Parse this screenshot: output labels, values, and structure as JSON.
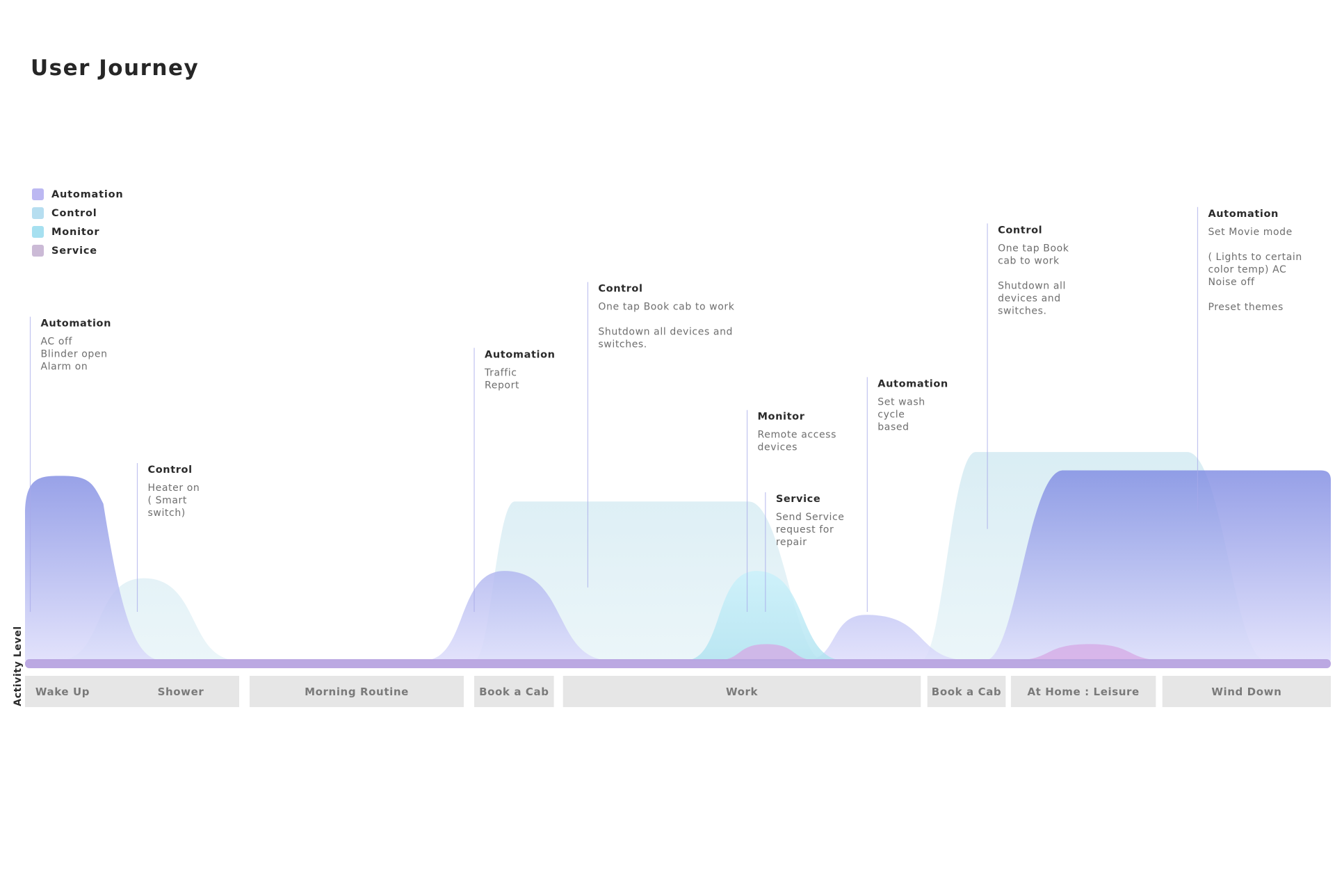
{
  "title": "User Journey",
  "colors": {
    "automation_top": "#7f8be2",
    "automation_bottom": "#dcdcfb",
    "automation_swatch": "#bcb8f2",
    "control": "#d3eaf2",
    "control_swatch": "#b6def0",
    "monitor": "#bde8f4",
    "monitor_swatch": "#a6e0f0",
    "service": "#d5a8e4",
    "service_swatch": "#cbbad6",
    "stage_box": "#e6e6e6",
    "baseline": "#b7a3e0",
    "leader": "#a7aaea"
  },
  "legend": [
    {
      "label": "Automation",
      "color": "#bcb8f2"
    },
    {
      "label": "Control",
      "color": "#b6def0"
    },
    {
      "label": "Monitor",
      "color": "#a6e0f0"
    },
    {
      "label": "Service",
      "color": "#cbbad6"
    }
  ],
  "chart_data": {
    "type": "area",
    "title": "User Journey",
    "ylabel": "Activity Level",
    "xlabel": "",
    "x_range": [
      0,
      100
    ],
    "y_range": [
      0,
      100
    ],
    "stages": [
      {
        "label": "Wake Up",
        "start": 0,
        "end": 8.2
      },
      {
        "label": "Shower",
        "start": 8.2,
        "end": 16.4
      },
      {
        "label": "Morning Routine",
        "start": 17.2,
        "end": 33.6
      },
      {
        "label": "Book a Cab",
        "start": 34.4,
        "end": 40.5
      },
      {
        "label": "Work",
        "start": 41.2,
        "end": 68.6
      },
      {
        "label": "Book a Cab",
        "start": 69.1,
        "end": 75.1
      },
      {
        "label": "At Home : Leisure",
        "start": 75.5,
        "end": 86.6
      },
      {
        "label": "Wind Down",
        "start": 87.1,
        "end": 100
      }
    ],
    "series": [
      {
        "name": "Control",
        "values": [
          {
            "x": 2.5,
            "y": 0
          },
          {
            "x": 9.1,
            "y": 45
          },
          {
            "x": 16.4,
            "y": 0
          },
          {
            "x": 34.4,
            "y": 0
          },
          {
            "x": 37.5,
            "y": 87
          },
          {
            "x": 55.4,
            "y": 87
          },
          {
            "x": 61.2,
            "y": 0
          },
          {
            "x": 68.6,
            "y": 0
          },
          {
            "x": 72.8,
            "y": 114
          },
          {
            "x": 89,
            "y": 114
          },
          {
            "x": 95,
            "y": 0
          }
        ]
      },
      {
        "name": "Automation",
        "values": [
          {
            "x": 0,
            "y": 95
          },
          {
            "x": 2.8,
            "y": 101
          },
          {
            "x": 10.6,
            "y": 0
          },
          {
            "x": 30.5,
            "y": 0
          },
          {
            "x": 36.7,
            "y": 49
          },
          {
            "x": 44.9,
            "y": 0
          },
          {
            "x": 59.7,
            "y": 0
          },
          {
            "x": 64.4,
            "y": 25
          },
          {
            "x": 72.5,
            "y": 0
          },
          {
            "x": 73.5,
            "y": 0
          },
          {
            "x": 79.5,
            "y": 104
          },
          {
            "x": 100,
            "y": 104
          }
        ]
      },
      {
        "name": "Monitor",
        "values": [
          {
            "x": 50.5,
            "y": 0
          },
          {
            "x": 56,
            "y": 49
          },
          {
            "x": 62.8,
            "y": 0
          }
        ]
      },
      {
        "name": "Service",
        "values": [
          {
            "x": 52.8,
            "y": 0
          },
          {
            "x": 56.8,
            "y": 9
          },
          {
            "x": 60.8,
            "y": 0
          },
          {
            "x": 75.5,
            "y": 0
          },
          {
            "x": 81.5,
            "y": 9
          },
          {
            "x": 87.5,
            "y": 0
          }
        ]
      }
    ],
    "annotations": [
      {
        "x": 0.4,
        "y_top": 188,
        "title": "Automation",
        "lines": [
          "AC off",
          "Blinder open",
          "Alarm on"
        ]
      },
      {
        "x": 8.6,
        "y_top": 108,
        "title": "Control",
        "lines": [
          "Heater on",
          "( Smart",
          "switch)"
        ]
      },
      {
        "x": 34.4,
        "y_top": 171,
        "title": "Automation",
        "lines": [
          "Traffic",
          "Report"
        ]
      },
      {
        "x": 43.1,
        "y_top": 207,
        "title": "Control",
        "lines": [
          "One tap Book cab to work",
          "",
          "Shutdown all devices and",
          "switches."
        ]
      },
      {
        "x": 55.3,
        "y_top": 137,
        "title": "Monitor",
        "lines": [
          "Remote access",
          "devices"
        ]
      },
      {
        "x": 56.7,
        "y_top": 92,
        "title": "Service",
        "lines": [
          "Send Service",
          "request for",
          "repair"
        ]
      },
      {
        "x": 64.5,
        "y_top": 155,
        "title": "Automation",
        "lines": [
          "Set wash",
          "cycle",
          "based"
        ]
      },
      {
        "x": 73.7,
        "y_top": 239,
        "title": "Control",
        "lines": [
          "One tap Book",
          "cab to work",
          "",
          "Shutdown all",
          "devices and",
          "switches."
        ]
      },
      {
        "x": 89.8,
        "y_top": 248,
        "title": "Automation",
        "lines": [
          "Set Movie mode",
          "",
          "( Lights to certain",
          "color temp) AC",
          "Noise off",
          "",
          "Preset themes"
        ]
      }
    ]
  }
}
